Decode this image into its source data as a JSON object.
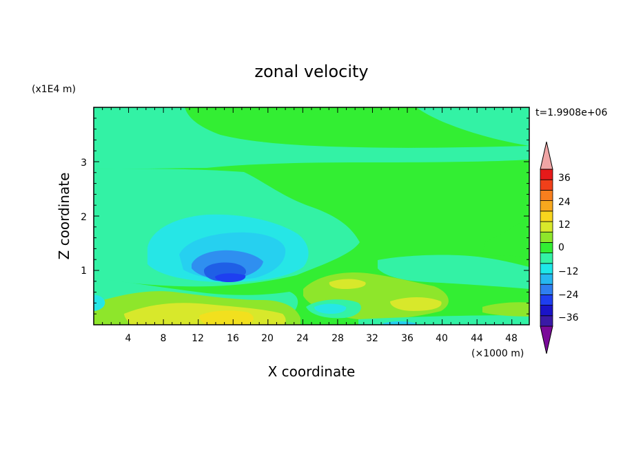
{
  "chart_data": {
    "type": "heatmap",
    "title": "zonal velocity",
    "xlabel": "X coordinate",
    "ylabel": "Z coordinate",
    "x_unit": "(×1000 m)",
    "y_unit": "(x1E4 m)",
    "time_label": "t=1.9908e+06",
    "xlim": [
      0,
      50
    ],
    "ylim": [
      0,
      4
    ],
    "x_ticks": [
      "4",
      "8",
      "12",
      "16",
      "20",
      "24",
      "28",
      "32",
      "36",
      "40",
      "44",
      "48"
    ],
    "y_ticks": [
      "1",
      "2",
      "3"
    ],
    "colorbar": {
      "labels": [
        "36",
        "24",
        "12",
        "0",
        "−12",
        "−24",
        "−36"
      ],
      "levels": [
        -42,
        -36,
        -30,
        -24,
        -18,
        -12,
        -6,
        0,
        6,
        12,
        18,
        24,
        30,
        36,
        42
      ],
      "colors_low_to_high": [
        "#7a0a99",
        "#3a1aa6",
        "#1a14c8",
        "#1e3ff0",
        "#2f7ff0",
        "#26b8f0",
        "#1ee8e8",
        "#33f2a5",
        "#33ee33",
        "#8ee62b",
        "#d8e82b",
        "#f7d51e",
        "#f7a81e",
        "#f77f1e",
        "#f0401a",
        "#e61a1a",
        "#f0a5a5"
      ]
    },
    "features": [
      {
        "x": 16,
        "z": 0.9,
        "value": -30
      },
      {
        "x": 16,
        "z": 1.1,
        "value": -20
      },
      {
        "x": 15,
        "z": 1.2,
        "value": -8
      },
      {
        "x": 16,
        "z": 0.15,
        "value": 14
      },
      {
        "x": 30,
        "z": 0.6,
        "value": 10
      },
      {
        "x": 36,
        "z": 0.35,
        "value": 12
      },
      {
        "x": 35,
        "z": 0.03,
        "value": -14
      },
      {
        "x": 40,
        "z": 3.8,
        "value": -3
      }
    ]
  }
}
